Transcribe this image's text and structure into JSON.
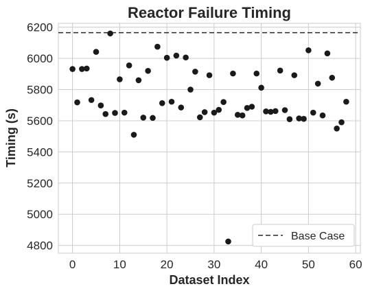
{
  "chart_data": {
    "type": "scatter",
    "title": "Reactor Failure Timing",
    "xlabel": "Dataset Index",
    "ylabel": "Timing (s)",
    "xlim": [
      -3,
      61
    ],
    "ylim": [
      4750,
      6225
    ],
    "xticks": [
      0,
      10,
      20,
      30,
      40,
      50,
      60
    ],
    "yticks": [
      4800,
      5000,
      5200,
      5400,
      5600,
      5800,
      6000,
      6200
    ],
    "grid": true,
    "legend_position": "lower-right",
    "reference_line": {
      "label": "Base Case",
      "y": 6165,
      "style": "dashed",
      "color": "#262626"
    },
    "series": [
      {
        "color": "#1a1a1a",
        "x": [
          0,
          1,
          2,
          3,
          4,
          5,
          6,
          7,
          8,
          9,
          10,
          11,
          12,
          13,
          14,
          15,
          16,
          17,
          18,
          19,
          20,
          21,
          22,
          23,
          24,
          25,
          26,
          27,
          28,
          29,
          30,
          31,
          32,
          33,
          34,
          35,
          36,
          37,
          38,
          39,
          40,
          41,
          42,
          43,
          44,
          45,
          46,
          47,
          48,
          49,
          50,
          51,
          52,
          53,
          54,
          55,
          56,
          57,
          58
        ],
        "y": [
          5932,
          5718,
          5932,
          5935,
          5733,
          6042,
          5698,
          5643,
          6160,
          5650,
          5866,
          5652,
          5955,
          5510,
          5860,
          5620,
          5920,
          5618,
          6075,
          5713,
          6004,
          5722,
          6018,
          5685,
          6006,
          5800,
          5915,
          5622,
          5655,
          5892,
          5652,
          5670,
          5720,
          4825,
          5903,
          5638,
          5634,
          5682,
          5690,
          5903,
          5812,
          5660,
          5657,
          5662,
          5922,
          5668,
          5610,
          5892,
          5615,
          5612,
          6052,
          5652,
          5838,
          5634,
          6032,
          5876,
          5550,
          5590,
          5722
        ]
      }
    ]
  }
}
